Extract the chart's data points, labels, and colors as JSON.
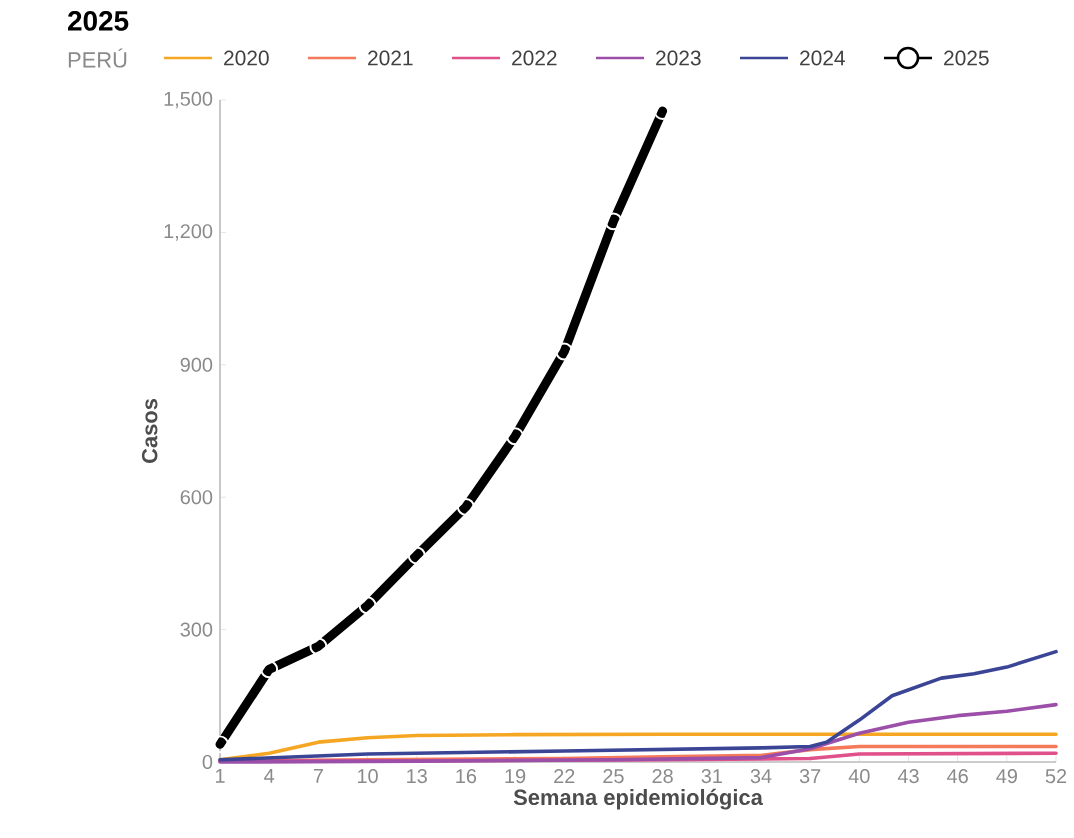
{
  "chart_data": {
    "type": "line",
    "title": "2025",
    "legend_title": "PERÚ",
    "xlabel": "Semana epidemiológica",
    "ylabel": "Casos",
    "xlim": [
      1,
      52
    ],
    "ylim": [
      0,
      1500
    ],
    "xticks": [
      1,
      4,
      7,
      10,
      13,
      16,
      19,
      22,
      25,
      28,
      31,
      34,
      37,
      40,
      43,
      46,
      49,
      52
    ],
    "yticks": [
      0,
      300,
      600,
      900,
      {
        "value": 1200,
        "label": "1,200"
      },
      {
        "value": 1500,
        "label": "1,500"
      }
    ],
    "legend": "top",
    "grid": false,
    "marker": "circle",
    "series": [
      {
        "name": "2020",
        "color": "#f5a623",
        "marker": "none",
        "x": [
          1,
          4,
          7,
          10,
          13,
          19,
          28,
          40,
          52
        ],
        "values": [
          5,
          20,
          45,
          55,
          60,
          62,
          63,
          63,
          63
        ]
      },
      {
        "name": "2021",
        "color": "#f47a5a",
        "marker": "none",
        "x": [
          1,
          10,
          22,
          28,
          34,
          37,
          40,
          52
        ],
        "values": [
          2,
          5,
          8,
          12,
          15,
          28,
          35,
          35
        ]
      },
      {
        "name": "2022",
        "color": "#e0508a",
        "marker": "none",
        "x": [
          1,
          13,
          28,
          37,
          40,
          52
        ],
        "values": [
          2,
          3,
          5,
          8,
          18,
          20
        ]
      },
      {
        "name": "2023",
        "color": "#9b4fa8",
        "marker": "none",
        "x": [
          1,
          13,
          25,
          34,
          37,
          40,
          43,
          46,
          49,
          52
        ],
        "values": [
          0,
          2,
          5,
          10,
          30,
          65,
          90,
          105,
          115,
          130
        ]
      },
      {
        "name": "2024",
        "color": "#3b4596",
        "marker": "none",
        "x": [
          1,
          10,
          22,
          34,
          37,
          38,
          40,
          42,
          45,
          47,
          49,
          52
        ],
        "values": [
          5,
          18,
          25,
          32,
          35,
          45,
          95,
          150,
          190,
          200,
          215,
          250
        ]
      },
      {
        "name": "2025",
        "color": "#000000",
        "x": [
          1,
          4,
          7,
          10,
          13,
          16,
          19,
          22,
          25,
          28
        ],
        "values": [
          40,
          210,
          262,
          355,
          468,
          578,
          738,
          930,
          1225,
          1475
        ]
      }
    ]
  }
}
